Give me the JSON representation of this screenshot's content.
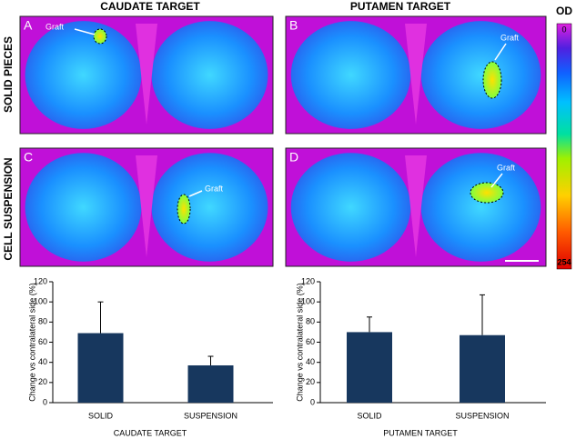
{
  "header": {
    "columns": [
      "CAUDATE TARGET",
      "PUTAMEN TARGET"
    ],
    "rows": [
      "SOLID PIECES",
      "CELL SUSPENSION"
    ]
  },
  "panels": [
    {
      "letter": "A",
      "annotation": "Graft"
    },
    {
      "letter": "B",
      "annotation": "Graft"
    },
    {
      "letter": "C",
      "annotation": "Graft"
    },
    {
      "letter": "D",
      "annotation": "Graft"
    }
  ],
  "colorbar": {
    "title": "OD",
    "min": 0,
    "max": 254
  },
  "chart_data": [
    {
      "type": "bar",
      "categories": [
        "SOLID",
        "SUSPENSION"
      ],
      "values": [
        69,
        37
      ],
      "errors": [
        31,
        9
      ],
      "color": "#17375e",
      "ylim": [
        0,
        120
      ],
      "yticks": [
        0,
        20,
        40,
        60,
        80,
        100,
        120
      ],
      "xlabel": "CAUDATE TARGET",
      "ylabel": "Change vs contralateral side (%)"
    },
    {
      "type": "bar",
      "categories": [
        "SOLID",
        "SUSPENSION"
      ],
      "values": [
        70,
        67
      ],
      "errors": [
        15,
        40
      ],
      "color": "#17375e",
      "ylim": [
        0,
        120
      ],
      "yticks": [
        0,
        20,
        40,
        60,
        80,
        100,
        120
      ],
      "xlabel": "PUTAMEN TARGET",
      "ylabel": "Change vs contralateral side (%)"
    }
  ]
}
